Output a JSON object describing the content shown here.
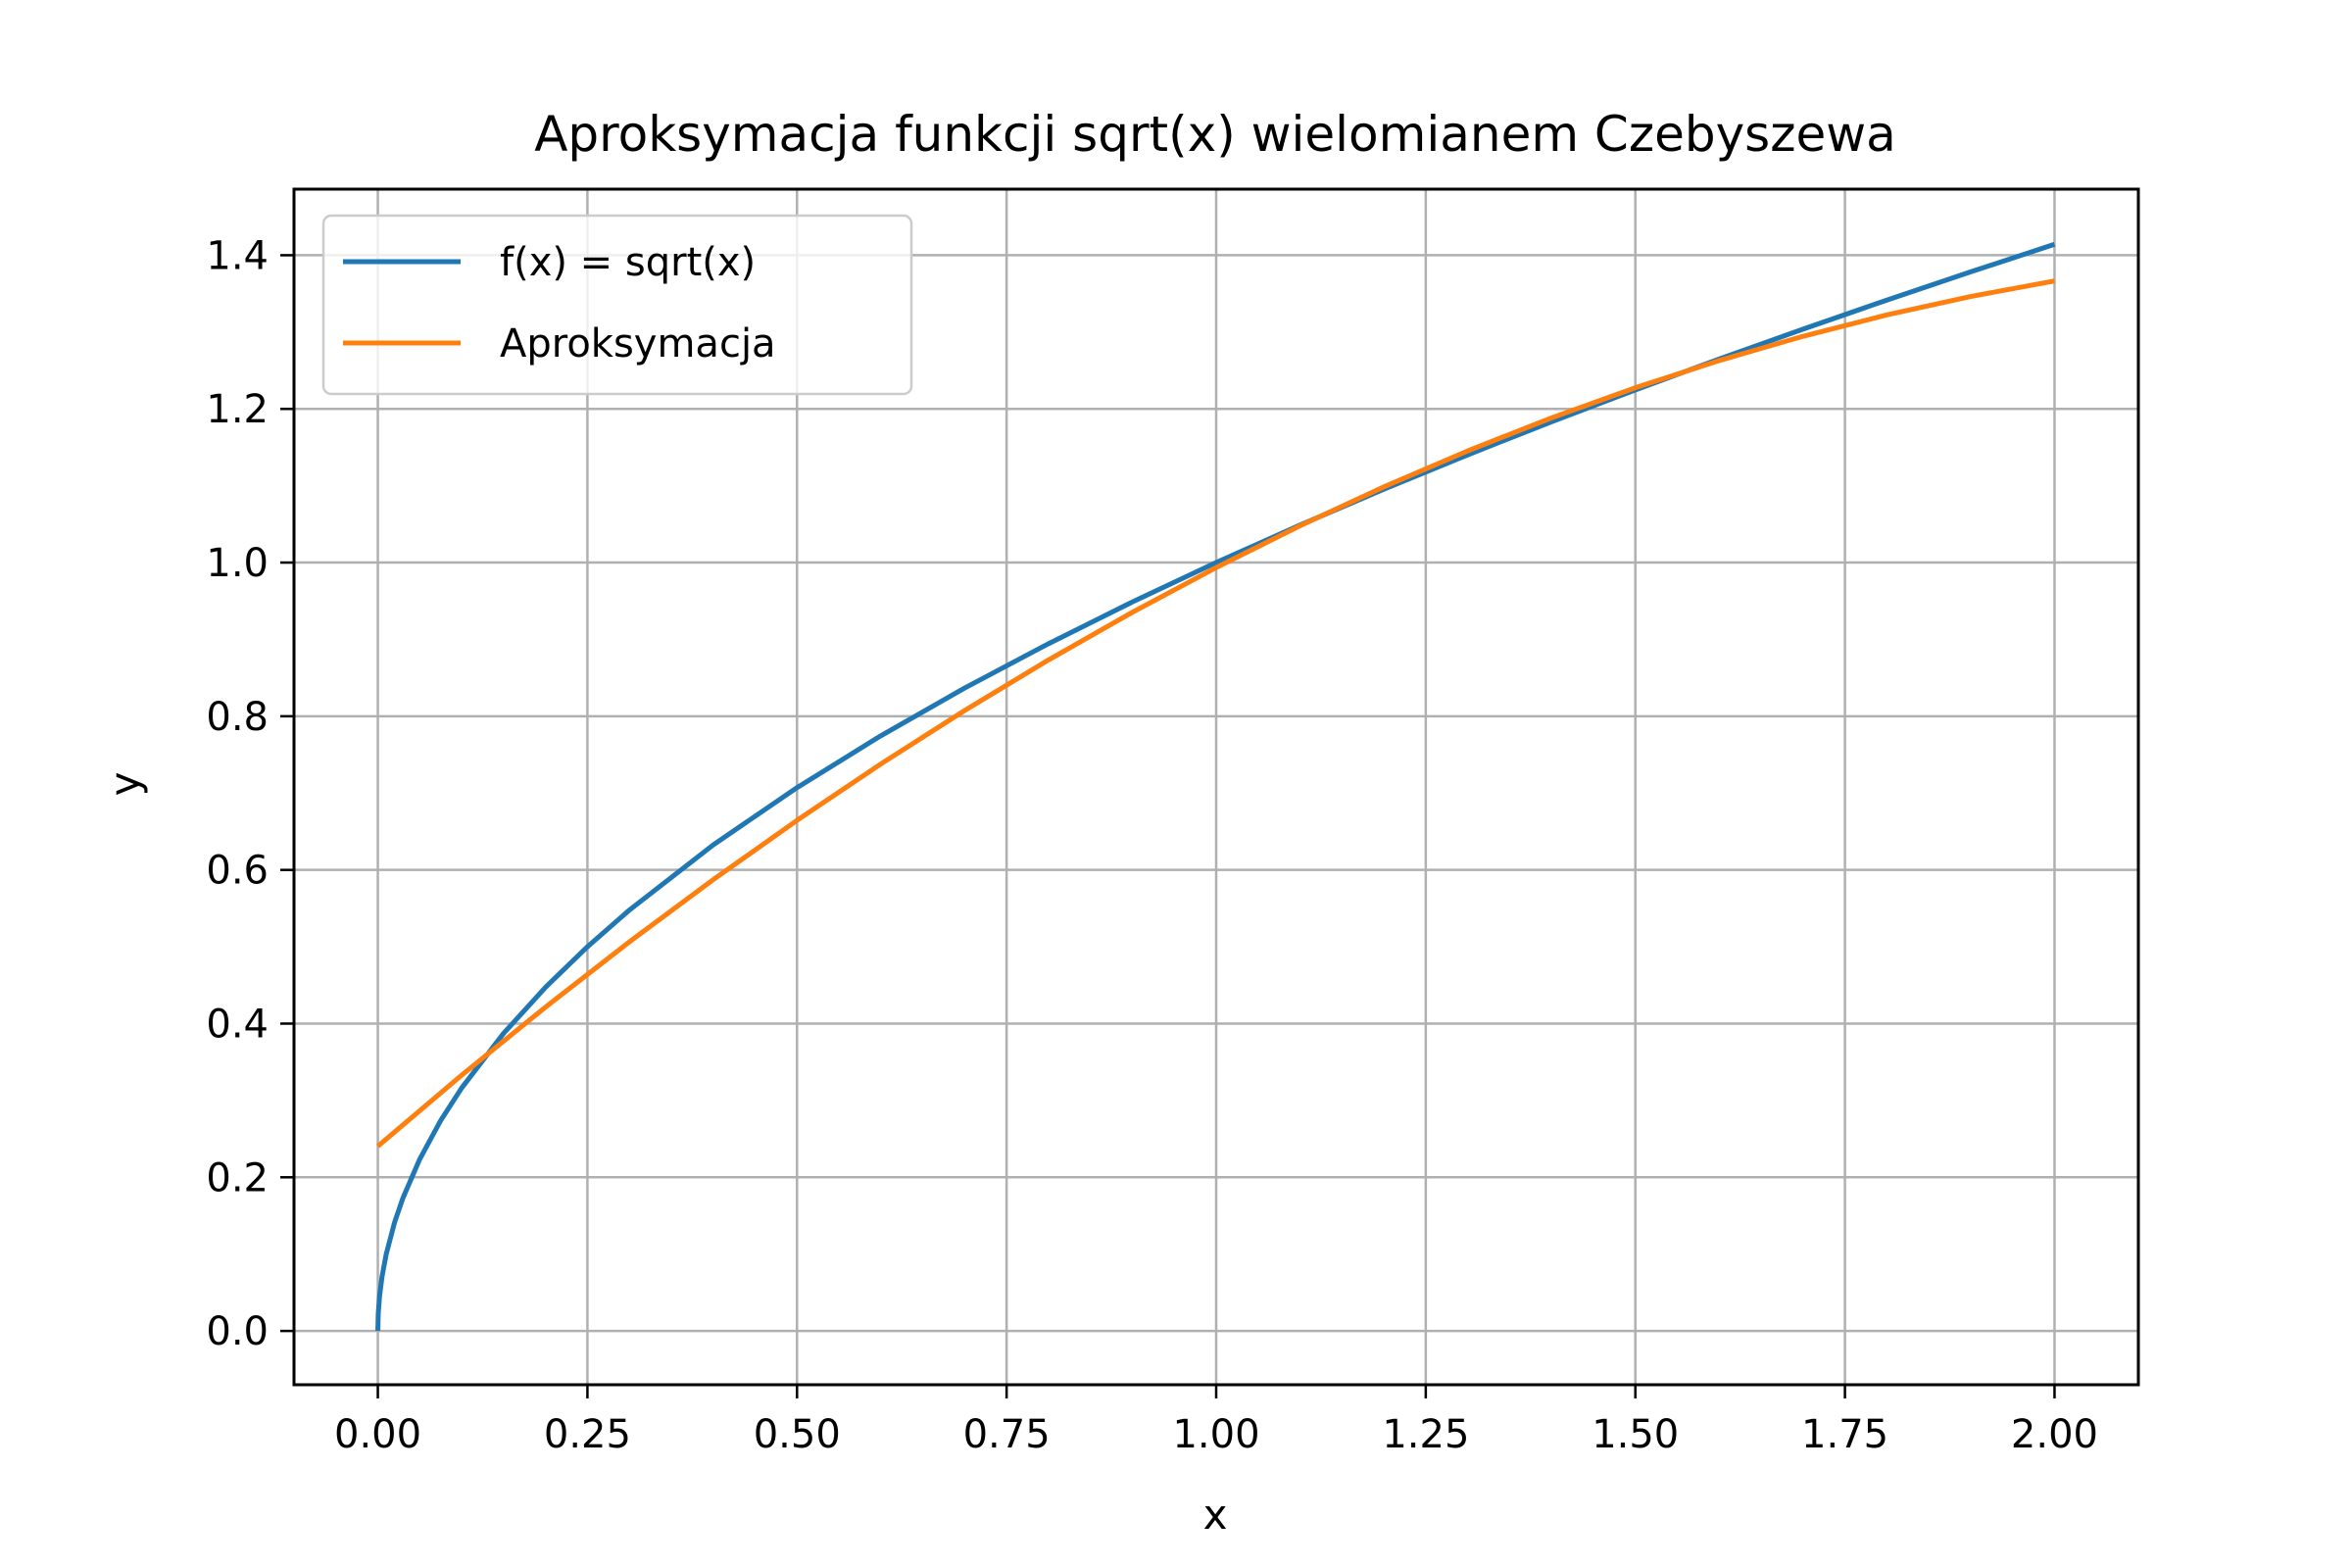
{
  "chart_data": {
    "type": "line",
    "title": "Aproksymacja funkcji sqrt(x) wielomianem Czebyszewa",
    "xlabel": "x",
    "ylabel": "y",
    "xlim": [
      -0.1,
      2.1
    ],
    "ylim": [
      -0.07,
      1.486
    ],
    "x_ticks": [
      0.0,
      0.25,
      0.5,
      0.75,
      1.0,
      1.25,
      1.5,
      1.75,
      2.0
    ],
    "x_tick_labels": [
      "0.00",
      "0.25",
      "0.50",
      "0.75",
      "1.00",
      "1.25",
      "1.50",
      "1.75",
      "2.00"
    ],
    "y_ticks": [
      0.0,
      0.2,
      0.4,
      0.6,
      0.8,
      1.0,
      1.2,
      1.4
    ],
    "y_tick_labels": [
      "0.0",
      "0.2",
      "0.4",
      "0.6",
      "0.8",
      "1.0",
      "1.2",
      "1.4"
    ],
    "grid": true,
    "legend_position": "top-left",
    "series": [
      {
        "name": "f(x) = sqrt(x)",
        "color": "#1f77b4",
        "x": [
          0,
          0.0005,
          0.002,
          0.005,
          0.01,
          0.02,
          0.03,
          0.05,
          0.075,
          0.1,
          0.15,
          0.2,
          0.25,
          0.3,
          0.4,
          0.5,
          0.6,
          0.7,
          0.8,
          0.9,
          1.0,
          1.1,
          1.2,
          1.3,
          1.4,
          1.5,
          1.6,
          1.7,
          1.8,
          1.9,
          2.0
        ],
        "y": [
          0,
          0.0224,
          0.0447,
          0.0707,
          0.1,
          0.1414,
          0.1732,
          0.2236,
          0.2739,
          0.3162,
          0.3873,
          0.4472,
          0.5,
          0.5477,
          0.6325,
          0.7071,
          0.7746,
          0.8367,
          0.8944,
          0.9487,
          1.0,
          1.0488,
          1.0954,
          1.1402,
          1.1832,
          1.2247,
          1.2649,
          1.3038,
          1.3416,
          1.3784,
          1.4142
        ]
      },
      {
        "name": "Aproksymacja",
        "color": "#ff7f0e",
        "x": [
          0,
          0.1,
          0.2,
          0.3,
          0.4,
          0.5,
          0.6,
          0.7,
          0.8,
          0.9,
          1.0,
          1.1,
          1.2,
          1.3,
          1.4,
          1.5,
          1.6,
          1.7,
          1.8,
          1.9,
          2.0
        ],
        "y": [
          0.2404,
          0.3329,
          0.4215,
          0.5063,
          0.5873,
          0.6645,
          0.7379,
          0.8075,
          0.8733,
          0.9353,
          0.9935,
          1.0479,
          1.0985,
          1.1453,
          1.1883,
          1.2275,
          1.2629,
          1.2945,
          1.3223,
          1.3463,
          1.3665
        ]
      }
    ]
  }
}
